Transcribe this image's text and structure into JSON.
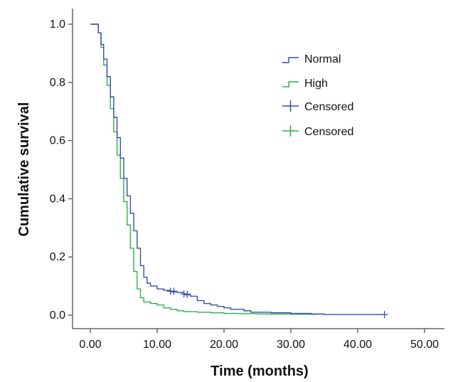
{
  "chart_data": {
    "type": "line",
    "subtype": "kaplan-meier",
    "xlabel": "Time (months)",
    "ylabel": "Cumulative survival",
    "xlim": [
      0,
      50
    ],
    "ylim": [
      0,
      1
    ],
    "x_ticks": [
      "0.00",
      "10.00",
      "20.00",
      "30.00",
      "40.00",
      "50.00"
    ],
    "y_ticks": [
      "0.0",
      "0.2",
      "0.4",
      "0.6",
      "0.8",
      "1.0"
    ],
    "x_tick_values": [
      0,
      10,
      20,
      30,
      40,
      50
    ],
    "y_tick_values": [
      0,
      0.2,
      0.4,
      0.6,
      0.8,
      1.0
    ],
    "grid": false,
    "legend_position": "top-right",
    "legend": [
      "Normal",
      "High",
      "Censored",
      "Censored"
    ],
    "series": [
      {
        "name": "Normal",
        "color": "#3a4fa8",
        "x": [
          0,
          0.8,
          1.2,
          1.6,
          2.0,
          2.5,
          3.0,
          3.5,
          4.0,
          4.5,
          5.0,
          5.5,
          6.0,
          6.5,
          7.0,
          7.5,
          8.0,
          8.5,
          9.0,
          10.0,
          11.0,
          12.0,
          13.0,
          14.0,
          15.0,
          16.0,
          17.0,
          18.0,
          19.0,
          20.0,
          21.0,
          22.0,
          23.0,
          24.0,
          25.0,
          27.0,
          30.0,
          33.0,
          35.0,
          44.0
        ],
        "y": [
          1.0,
          1.0,
          0.97,
          0.93,
          0.88,
          0.82,
          0.75,
          0.68,
          0.61,
          0.54,
          0.47,
          0.41,
          0.35,
          0.29,
          0.23,
          0.17,
          0.13,
          0.11,
          0.1,
          0.09,
          0.085,
          0.08,
          0.078,
          0.07,
          0.065,
          0.05,
          0.04,
          0.035,
          0.03,
          0.025,
          0.02,
          0.02,
          0.015,
          0.01,
          0.01,
          0.008,
          0.006,
          0.004,
          0.002,
          0.002
        ]
      },
      {
        "name": "High",
        "color": "#2cb34a",
        "x": [
          0,
          0.8,
          1.2,
          1.6,
          2.0,
          2.5,
          3.0,
          3.5,
          4.0,
          4.5,
          5.0,
          5.5,
          6.0,
          6.5,
          7.0,
          7.5,
          8.0,
          9.0,
          10.0,
          11.0,
          12.0,
          13.0,
          14.0,
          16.0,
          18.0,
          20.0,
          22.0,
          25.0,
          30.0,
          34.0
        ],
        "y": [
          1.0,
          1.0,
          0.97,
          0.92,
          0.86,
          0.79,
          0.71,
          0.63,
          0.55,
          0.47,
          0.39,
          0.31,
          0.23,
          0.15,
          0.09,
          0.06,
          0.045,
          0.04,
          0.035,
          0.025,
          0.02,
          0.015,
          0.012,
          0.01,
          0.008,
          0.006,
          0.005,
          0.004,
          0.003,
          0.002
        ]
      }
    ],
    "censored": [
      {
        "series": "Normal",
        "x": [
          12.0,
          12.5,
          14.0,
          14.5,
          44.0
        ],
        "y": [
          0.082,
          0.082,
          0.073,
          0.072,
          0.002
        ]
      }
    ]
  }
}
